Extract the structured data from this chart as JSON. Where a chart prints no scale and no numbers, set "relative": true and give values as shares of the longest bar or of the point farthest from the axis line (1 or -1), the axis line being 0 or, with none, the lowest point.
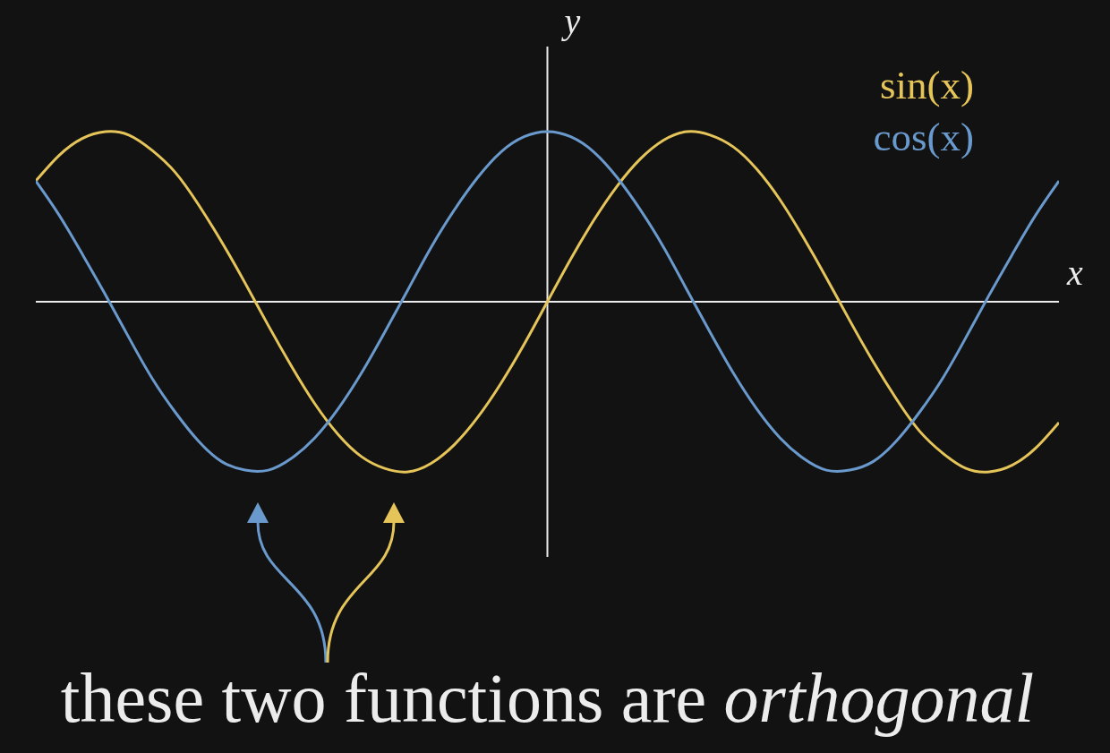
{
  "chart_data": {
    "type": "line",
    "xlabel": "x",
    "ylabel": "y",
    "relative": true,
    "legend": "top right",
    "marker": "none",
    "categories": [
      null,
      null,
      null,
      null,
      null,
      null,
      null,
      null,
      null,
      null,
      null,
      null,
      null,
      null,
      null,
      null,
      null,
      null,
      null,
      null,
      null,
      null,
      null,
      null,
      null,
      null,
      null,
      null,
      null,
      null,
      null,
      null,
      null,
      null,
      null,
      null,
      null,
      null,
      null,
      null,
      null,
      null,
      null,
      null,
      null
    ],
    "series": [
      {
        "name": "sin(x)",
        "color": "#e5c55a",
        "values": [
          0.71,
          0.86,
          0.96,
          1.0,
          0.98,
          0.89,
          0.76,
          0.57,
          0.35,
          0.11,
          -0.14,
          -0.38,
          -0.6,
          -0.78,
          -0.91,
          -0.98,
          -1.0,
          -0.95,
          -0.84,
          -0.68,
          -0.48,
          -0.25,
          0,
          0.25,
          0.48,
          0.68,
          0.84,
          0.95,
          1.0,
          0.98,
          0.91,
          0.78,
          0.6,
          0.38,
          0.14,
          -0.11,
          -0.35,
          -0.57,
          -0.76,
          -0.89,
          -0.98,
          -1.0,
          -0.96,
          -0.86,
          -0.71
        ]
      },
      {
        "name": "cos(x)",
        "color": "#6a9acd",
        "values": [
          0.71,
          0.51,
          0.28,
          0.04,
          -0.21,
          -0.45,
          -0.65,
          -0.82,
          -0.94,
          -0.99,
          -0.99,
          -0.92,
          -0.8,
          -0.63,
          -0.42,
          -0.18,
          0.07,
          0.32,
          0.54,
          0.73,
          0.88,
          0.97,
          1.0,
          0.97,
          0.88,
          0.73,
          0.54,
          0.32,
          0.07,
          -0.18,
          -0.42,
          -0.63,
          -0.8,
          -0.92,
          -0.99,
          -0.99,
          -0.94,
          -0.82,
          -0.65,
          -0.45,
          -0.21,
          0.04,
          0.28,
          0.51,
          0.71
        ]
      }
    ],
    "annotations": [
      "these two functions are orthogonal"
    ]
  }
}
